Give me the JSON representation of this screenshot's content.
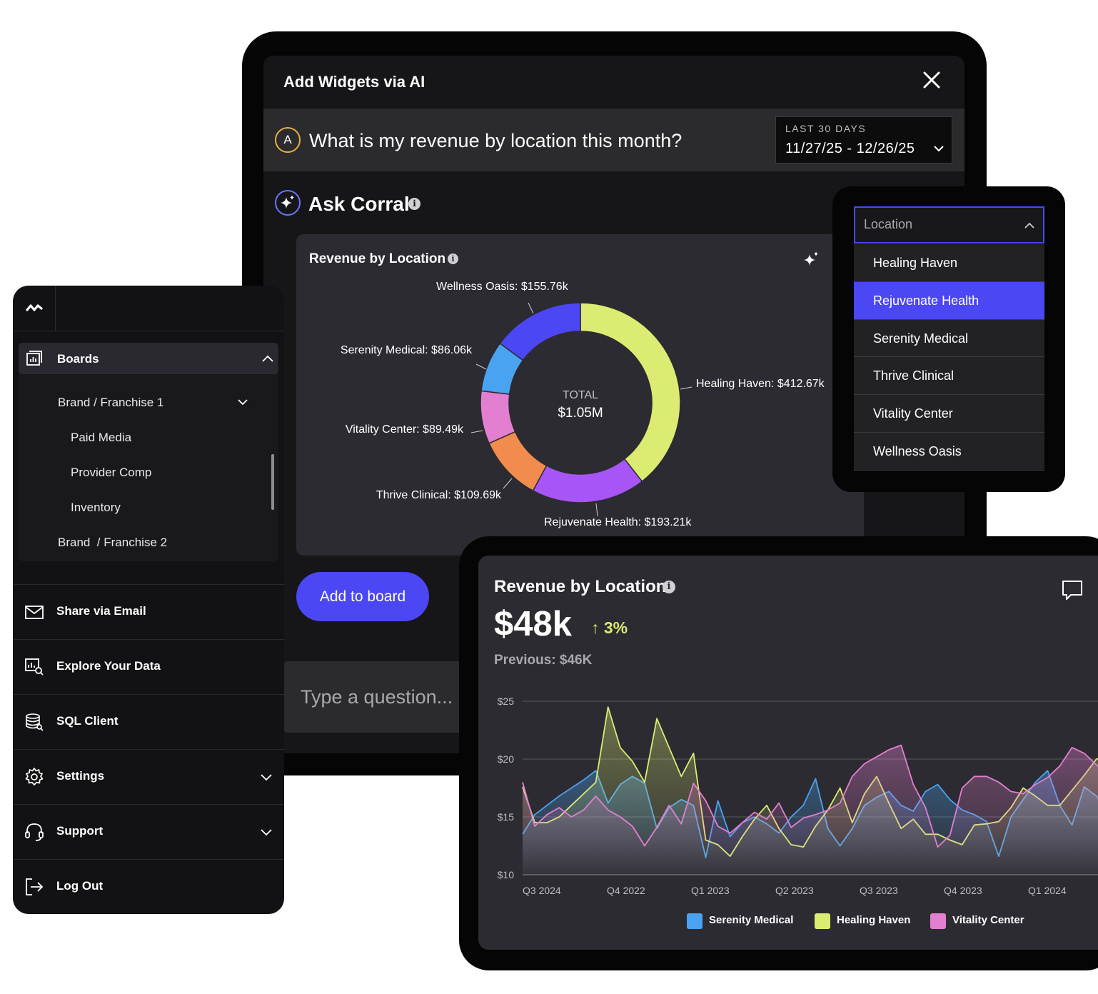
{
  "ai_panel": {
    "title": "Add Widgets via AI",
    "question_avatar": "A",
    "question": "What is my revenue by location this month?",
    "date_range": {
      "label": "LAST 30 DAYS",
      "value": "11/27/25 - 12/26/25"
    },
    "ask_title": "Ask Corral",
    "info_glyph": "i",
    "add_button": "Add to board",
    "input_placeholder": "Type a question..."
  },
  "donut_card": {
    "title": "Revenue by Location",
    "center_label": "TOTAL",
    "center_value": "$1.05M"
  },
  "location_dropdown": {
    "placeholder": "Location",
    "selected": "Rejuvenate Health",
    "options": [
      "Healing Haven",
      "Rejuvenate Health",
      "Serenity Medical",
      "Thrive Clinical",
      "Vitality Center",
      "Wellness Oasis"
    ]
  },
  "sidebar": {
    "boards": {
      "label": "Boards",
      "items": [
        "Brand / Franchise 1",
        "Paid Media",
        "Provider Comp",
        "Inventory",
        "Brand  / Franchise 2"
      ]
    },
    "menu": [
      {
        "label": "Share via Email",
        "icon": "mail-icon"
      },
      {
        "label": "Explore Your Data",
        "icon": "explore-data-icon"
      },
      {
        "label": "SQL Client",
        "icon": "database-icon"
      },
      {
        "label": "Settings",
        "icon": "gear-icon"
      },
      {
        "label": "Support",
        "icon": "headset-icon"
      },
      {
        "label": "Log Out",
        "icon": "logout-icon"
      }
    ]
  },
  "line_card": {
    "title": "Revenue by Location",
    "value": "$48k",
    "change": "↑ 3%",
    "previous": "Previous: $46K"
  },
  "colors": {
    "accent": "#4b47f5",
    "healing_haven": "#dcec73",
    "rejuvenate_health": "#a855f7",
    "wellness_oasis": "#4b47f5",
    "serenity_medical": "#4aa3f0",
    "vitality_center": "#e37fd0",
    "thrive_clinical": "#f28c4e"
  },
  "chart_data": [
    {
      "type": "pie",
      "title": "Revenue by Location",
      "categories": [
        "Healing Haven",
        "Rejuvenate Health",
        "Thrive Clinical",
        "Vitality Center",
        "Serenity Medical",
        "Wellness Oasis"
      ],
      "values": [
        412.67,
        193.21,
        109.69,
        89.49,
        86.06,
        155.76
      ],
      "labels": [
        "Healing Haven: $412.67k",
        "Rejuvenate Health: $193.21k",
        "Thrive Clinical: $109.69k",
        "Vitality Center: $89.49k",
        "Serenity Medical: $86.06k",
        "Wellness Oasis: $155.76k"
      ],
      "colors": [
        "#dcec73",
        "#a855f7",
        "#f28c4e",
        "#e37fd0",
        "#4aa3f0",
        "#4b47f5"
      ],
      "hole": true
    },
    {
      "type": "line",
      "title": "Revenue by Location",
      "x_tick_labels": [
        "Q3 2024",
        "Q4 2022",
        "Q1 2023",
        "Q2 2023",
        "Q3 2023",
        "Q4 2023",
        "Q1 2024"
      ],
      "y_tick_labels": [
        "$25",
        "$20",
        "$15",
        "$10"
      ],
      "y_ticks": [
        25,
        20,
        15,
        10
      ],
      "ylim": [
        10,
        25
      ],
      "grid": true,
      "legend": "bottom",
      "series": [
        {
          "name": "Serenity Medical",
          "color": "#4aa3f0",
          "values": [
            13.5,
            15.2,
            16.0,
            16.8,
            17.5,
            18.2,
            19.0,
            16.2,
            17.8,
            18.5,
            17.9,
            14.0,
            15.8,
            16.5,
            16.0,
            11.5,
            16.4,
            13.3,
            14.5,
            15.0,
            14.4,
            13.6,
            15.0,
            16.0,
            18.3,
            14.0,
            12.5,
            14.0,
            16.0,
            16.7,
            17.2,
            16.0,
            15.5,
            17.2,
            17.8,
            16.5,
            15.6,
            15.2,
            14.6,
            11.6,
            15.0,
            16.5,
            18.0,
            19.0,
            16.0,
            14.3,
            17.6,
            16.8,
            15.2,
            13.6
          ]
        },
        {
          "name": "Healing Haven",
          "color": "#dcec73",
          "values": [
            17.6,
            14.5,
            14.5,
            15.0,
            16.0,
            17.0,
            18.0,
            24.5,
            21.0,
            19.8,
            18.0,
            23.5,
            21.0,
            18.5,
            20.5,
            13.0,
            12.6,
            11.6,
            13.3,
            14.8,
            16.0,
            14.0,
            12.6,
            12.4,
            14.2,
            15.6,
            17.5,
            14.5,
            17.0,
            18.5,
            16.2,
            14.0,
            14.8,
            13.5,
            13.5,
            13.0,
            12.6,
            14.3,
            14.4,
            14.6,
            15.8,
            17.5,
            16.8,
            16.0,
            16.0,
            17.3,
            18.6,
            20.0,
            20.2,
            20.2
          ]
        },
        {
          "name": "Vitality Center",
          "color": "#e37fd0",
          "values": [
            18.0,
            14.2,
            15.2,
            15.8,
            15.0,
            15.6,
            16.8,
            15.6,
            15.0,
            14.2,
            12.5,
            14.1,
            16.0,
            14.4,
            17.9,
            16.4,
            14.2,
            13.6,
            14.5,
            15.4,
            14.8,
            16.2,
            14.1,
            14.9,
            15.2,
            15.6,
            16.2,
            18.5,
            19.6,
            20.2,
            20.8,
            21.2,
            17.8,
            15.8,
            12.4,
            13.4,
            17.5,
            18.5,
            18.5,
            18.0,
            17.2,
            17.0,
            17.8,
            18.4,
            19.4,
            21.0,
            20.5,
            19.5,
            18.5,
            17.0
          ]
        }
      ]
    }
  ]
}
